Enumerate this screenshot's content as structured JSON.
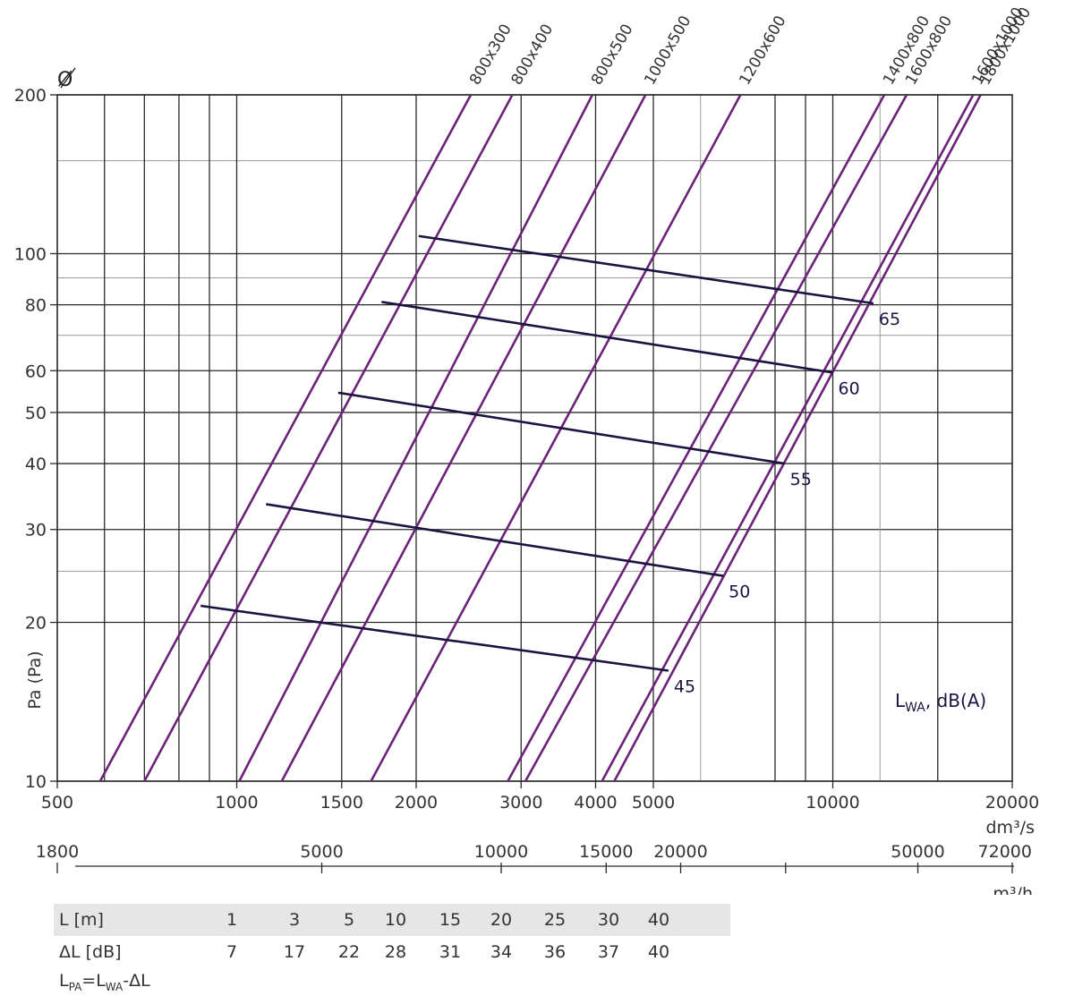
{
  "chart_data": {
    "type": "line",
    "x_scale": "log",
    "y_scale": "log",
    "xlim": [
      500,
      20000
    ],
    "ylim": [
      10,
      200
    ],
    "x_unit": "dm³/s",
    "y_label": "Pa (Pa)",
    "diameter_symbol": "Ø",
    "x_ticks": [
      "500",
      "1000",
      "1500",
      "2000",
      "3000",
      "4000",
      "5000",
      "10000",
      "20000"
    ],
    "y_ticks": [
      "10",
      "20",
      "30",
      "40",
      "50",
      "60",
      "80",
      "100",
      "200"
    ],
    "secondary_x_unit": "m³/h",
    "secondary_x_ticks": [
      "1800",
      "5000",
      "10000",
      "15000",
      "20000",
      "50000",
      "72000"
    ],
    "noise_label": "L",
    "noise_label_sub": "WA",
    "noise_label_suffix": ", dB(A)",
    "series": [
      {
        "name": "800x300",
        "points": [
          [
            590,
            10
          ],
          [
            2470,
            200
          ]
        ]
      },
      {
        "name": "800x400",
        "points": [
          [
            700,
            10
          ],
          [
            2900,
            200
          ]
        ]
      },
      {
        "name": "800x500",
        "points": [
          [
            1010,
            10
          ],
          [
            3950,
            200
          ]
        ]
      },
      {
        "name": "1000x500",
        "points": [
          [
            1190,
            10
          ],
          [
            4850,
            200
          ]
        ]
      },
      {
        "name": "1200x600",
        "points": [
          [
            1680,
            10
          ],
          [
            7000,
            200
          ]
        ]
      },
      {
        "name": "1400x800",
        "points": [
          [
            2850,
            10
          ],
          [
            12200,
            200
          ]
        ]
      },
      {
        "name": "1600x800",
        "points": [
          [
            3050,
            10
          ],
          [
            13300,
            200
          ]
        ]
      },
      {
        "name": "1600x1000",
        "points": [
          [
            4100,
            10
          ],
          [
            17200,
            200
          ]
        ]
      },
      {
        "name": "1800x1000",
        "points": [
          [
            4300,
            10
          ],
          [
            17700,
            200
          ]
        ]
      }
    ],
    "sound_levels": [
      {
        "label": "45",
        "points": [
          [
            870,
            21.5
          ],
          [
            5300,
            16.2
          ]
        ]
      },
      {
        "label": "50",
        "points": [
          [
            1120,
            33.5
          ],
          [
            6550,
            24.5
          ]
        ]
      },
      {
        "label": "55",
        "points": [
          [
            1480,
            54.5
          ],
          [
            8300,
            40.0
          ]
        ]
      },
      {
        "label": "60",
        "points": [
          [
            1750,
            81.0
          ],
          [
            10000,
            59.5
          ]
        ]
      },
      {
        "label": "65",
        "points": [
          [
            2020,
            108.0
          ],
          [
            11700,
            80.5
          ]
        ]
      }
    ],
    "colors": {
      "series": "#6b2377",
      "sound": "#1b1340",
      "grid": "#2a2a2a"
    }
  },
  "table": {
    "row1_header": "L [m]",
    "row1_values": [
      "1",
      "3",
      "5",
      "10",
      "15",
      "20",
      "25",
      "30",
      "40"
    ],
    "row2_header": "ΔL [dB]",
    "row2_values": [
      "7",
      "17",
      "22",
      "28",
      "31",
      "34",
      "36",
      "37",
      "40"
    ]
  },
  "formula": {
    "a": "L",
    "a_sub": "PA",
    "eq": "=L",
    "b_sub": "WA",
    "tail": "-ΔL"
  }
}
